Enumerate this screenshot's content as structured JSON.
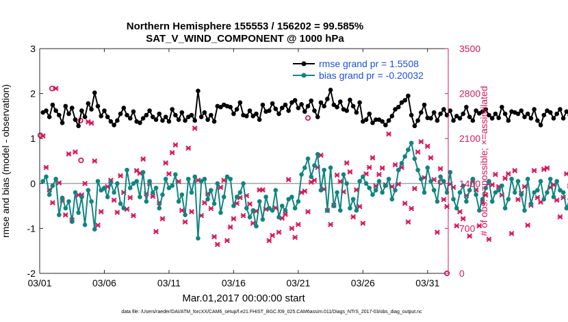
{
  "chart_data": {
    "type": "line",
    "title_line1": "Northern Hemisphere 155553 / 156202 = 99.585%",
    "title_line2": "SAT_V_WIND_COMPONENT @ 1000 hPa",
    "xlabel": "Mar.01,2017 00:00:00 start",
    "ylabel": "rmse and bias (model - observation)",
    "ylabel_right": "# of obs: o=possible; ×=assimilated",
    "footnote": "data file: /Users/raeder/DAI/ATM_forcXX/CAM6_setup/f.e21.FHIST_BGC.f09_025.CAM6assim.011/Diags_NTrS_2017-03/obs_diag_output.nc",
    "xlim": [
      1,
      32.6
    ],
    "ylim": [
      -2,
      3
    ],
    "ylim_right": [
      0,
      3500
    ],
    "x_ticks": [
      1,
      6,
      11,
      16,
      21,
      26,
      31
    ],
    "x_tick_labels": [
      "03/01",
      "03/06",
      "03/11",
      "03/16",
      "03/21",
      "03/26",
      "03/31"
    ],
    "y_ticks": [
      -2,
      -1,
      0,
      1,
      2,
      3
    ],
    "y_tick_labels": [
      "-2",
      "-1",
      "0",
      "1",
      "2",
      "3"
    ],
    "y_right_ticks": [
      0,
      700,
      1400,
      2100,
      2800,
      3500
    ],
    "y_right_tick_labels": [
      "0",
      "700",
      "1400",
      "2100",
      "2800",
      "3500"
    ],
    "zero_line": 0,
    "x_start": 1.25,
    "x_step": 0.25,
    "legend": [
      {
        "label": "rmse grand pr =  1.5508",
        "color": "#000000"
      },
      {
        "label": "bias grand pr = -0.20032",
        "color": "#0f8582"
      }
    ],
    "series": [
      {
        "name": "rmse",
        "color": "#000000",
        "axis": "left",
        "values": [
          1.58,
          1.62,
          1.48,
          1.75,
          1.62,
          1.52,
          1.35,
          1.72,
          1.55,
          1.68,
          1.42,
          1.28,
          1.62,
          1.48,
          1.78,
          1.65,
          2.02,
          1.72,
          1.5,
          1.62,
          1.48,
          1.38,
          1.3,
          1.4,
          1.55,
          1.68,
          1.52,
          1.45,
          1.6,
          1.38,
          1.35,
          1.45,
          1.52,
          1.62,
          1.48,
          1.42,
          1.55,
          1.4,
          1.48,
          1.38,
          1.65,
          1.52,
          1.42,
          1.58,
          1.4,
          1.48,
          1.52,
          1.4,
          2.06,
          1.48,
          1.58,
          1.42,
          1.52,
          1.38,
          1.72,
          1.7,
          1.75,
          1.72,
          1.7,
          1.55,
          1.65,
          1.8,
          1.52,
          1.5,
          1.62,
          1.5,
          1.55,
          1.42,
          1.75,
          1.6,
          1.62,
          1.78,
          1.66,
          1.55,
          1.68,
          1.75,
          1.62,
          1.8,
          1.85,
          1.68,
          1.76,
          1.6,
          1.72,
          1.84,
          1.62,
          1.48,
          1.8,
          1.72,
          1.88,
          2.08,
          1.75,
          1.7,
          1.82,
          1.65,
          1.62,
          1.86,
          1.72,
          1.58,
          1.8,
          1.38,
          1.42,
          1.55,
          1.35,
          1.42,
          1.42,
          1.38,
          1.3,
          1.4,
          1.5,
          1.65,
          1.7,
          1.8,
          1.85,
          1.95,
          1.52,
          1.28,
          1.4,
          1.58,
          1.75,
          1.46,
          1.45,
          1.58,
          1.4,
          1.55,
          1.65,
          1.52,
          1.62,
          1.4,
          1.5,
          1.45,
          1.55,
          1.7,
          1.48,
          1.4,
          1.62,
          1.56,
          1.6,
          1.65,
          1.52,
          1.45,
          1.55,
          1.46,
          1.7,
          1.55,
          1.4,
          1.6,
          1.58,
          1.55,
          1.62,
          1.48,
          1.55,
          1.45,
          1.65,
          1.4,
          1.3,
          1.52,
          1.62,
          1.58,
          1.45,
          1.55,
          1.65,
          1.45,
          1.6,
          1.52,
          1.42,
          1.38,
          1.25,
          1.1,
          1.2,
          1.12,
          1.25,
          1.4,
          1.52,
          1.6,
          1.48,
          1.55,
          1.62,
          1.55,
          1.42,
          1.25,
          1.48,
          1.56,
          1.58,
          1.62,
          1.6,
          1.35
        ]
      },
      {
        "name": "bias",
        "color": "#0f8582",
        "axis": "left",
        "values": [
          0.05,
          0.15,
          -0.25,
          -0.05,
          0.1,
          -0.7,
          -0.32,
          -0.55,
          -0.4,
          -0.85,
          -0.2,
          -0.65,
          -0.3,
          -0.92,
          -0.15,
          -0.4,
          -1.02,
          0.05,
          -0.15,
          -0.1,
          -0.3,
          0.02,
          -0.2,
          0.0,
          -0.45,
          -0.55,
          0.3,
          -0.1,
          0.0,
          0.05,
          -0.3,
          0.25,
          -0.4,
          0.05,
          -0.2,
          -0.1,
          -0.55,
          -0.25,
          0.1,
          -0.1,
          -0.05,
          0.2,
          -0.4,
          -0.25,
          -0.7,
          0.1,
          -0.2,
          0.15,
          -1.22,
          0.05,
          0.1,
          -0.35,
          -0.15,
          -0.45,
          0.0,
          -0.65,
          -0.3,
          0.15,
          0.1,
          -0.5,
          -0.3,
          -0.2,
          0.0,
          -0.55,
          -0.75,
          -0.6,
          -0.95,
          -0.4,
          -0.8,
          -0.3,
          -0.55,
          -0.6,
          -0.15,
          -0.75,
          -0.5,
          -0.6,
          -0.35,
          -0.3,
          -0.55,
          -0.4,
          0.2,
          0.35,
          0.55,
          0.15,
          0.4,
          0.65,
          -0.15,
          0.3,
          -0.6,
          0.35,
          -0.5,
          -0.2,
          -0.6,
          0.2,
          0.0,
          -0.55,
          -0.35,
          -0.6,
          0.05,
          0.15,
          0.0,
          -0.1,
          -0.25,
          -0.15,
          0.05,
          -0.2,
          -0.05,
          0.1,
          -0.35,
          -0.15,
          0.3,
          0.45,
          0.6,
          0.75,
          0.9,
          0.55,
          0.3,
          0.1,
          -0.2,
          0.35,
          0.05,
          -0.15,
          -0.4,
          0.15,
          0.05,
          -0.2,
          0.25,
          -0.35,
          -0.55,
          -0.2,
          -0.05,
          -0.4,
          -0.15,
          0.1,
          -0.25,
          -0.6,
          -0.35,
          -0.1,
          0.05,
          -0.4,
          -0.2,
          -0.15,
          -0.05,
          -0.55,
          -0.35,
          0.1,
          -0.2,
          0.05,
          -0.25,
          -0.6,
          0.1,
          -0.45,
          -0.2,
          -0.15,
          0.05,
          -0.35,
          -0.2,
          0.1,
          -0.3,
          0.05,
          -0.15,
          -0.2,
          -0.55,
          -0.35,
          0.05,
          -0.8,
          -0.6,
          -0.35,
          -0.8,
          -0.3,
          -0.6,
          -0.1,
          -0.5,
          -0.2,
          0.0,
          -0.35,
          -0.7,
          -0.2,
          -0.55,
          -0.3,
          -0.05,
          -0.35,
          0.05,
          -0.45,
          -0.2,
          0.15,
          -0.35,
          -0.2,
          -0.05,
          -0.25
        ]
      },
      {
        "name": "# of obs possible",
        "color": "#d6175a",
        "axis": "right",
        "marker": "circle",
        "x": [
          1.05,
          1.95,
          4.15,
          4.2,
          21.75,
          29.6,
          32.5,
          32.0
        ],
        "values": [
          2150,
          2880,
          2380,
          1760,
          2420,
          3220,
          0,
          1420
        ]
      },
      {
        "name": "# of obs assimilated",
        "color": "#d6175a",
        "axis": "right",
        "marker": "x",
        "values": [
          2140,
          1650,
          1300,
          1100,
          2880,
          1410,
          1130,
          910,
          1860,
          830,
          1890,
          1220,
          1220,
          1400,
          2360,
          2340,
          1750,
          750,
          960,
          1310,
          1350,
          1450,
          1140,
          950,
          1520,
          1260,
          1000,
          1180,
          900,
          1600,
          1560,
          1780,
          1240,
          1400,
          1200,
          650,
          1100,
          850,
          1720,
          1550,
          1880,
          2000,
          1430,
          980,
          800,
          1950,
          960,
          2260,
          1450,
          900,
          1100,
          1240,
          1010,
          570,
          450,
          1340,
          1450,
          510,
          720,
          850,
          1090,
          1180,
          900,
          1210,
          1080,
          780,
          970,
          1300,
          1300,
          1000,
          510,
          590,
          1020,
          640,
          860,
          920,
          1460,
          700,
          560,
          760,
          1260,
          1280,
          960,
          1420,
          1450,
          1650,
          1840,
          1310,
          980,
          760,
          1060,
          1530,
          1430,
          1270,
          1720,
          1580,
          880,
          1300,
          1040,
          780,
          1550,
          1650,
          1800,
          1360,
          1540,
          1640,
          1380,
          2170,
          1350,
          1690,
          1390,
          1650,
          1090,
          800,
          1010,
          1320,
          1890,
          2050,
          1490,
          1980,
          1800,
          1460,
          640,
          1630,
          1150,
          1040,
          1390,
          1340,
          740,
          960,
          850,
          1210,
          580,
          1430,
          1300,
          740,
          1100,
          1220,
          530,
          1380,
          1540,
          1350,
          1220,
          1480,
          1550,
          620,
          1600,
          1150,
          1250,
          1350,
          750,
          1060,
          1600,
          1180,
          1110,
          1620,
          1640,
          1340,
          1380,
          1140,
          880,
          1180,
          1550,
          1360,
          1260,
          1700,
          1230,
          2020,
          1180,
          1470,
          1780,
          1720,
          1420,
          1690,
          1300,
          1600,
          1560,
          2200,
          1510,
          1810,
          1880,
          1780,
          1620,
          2350,
          1850,
          2450,
          1530,
          900,
          1150,
          1600,
          1740,
          1970,
          1160
        ]
      }
    ]
  }
}
